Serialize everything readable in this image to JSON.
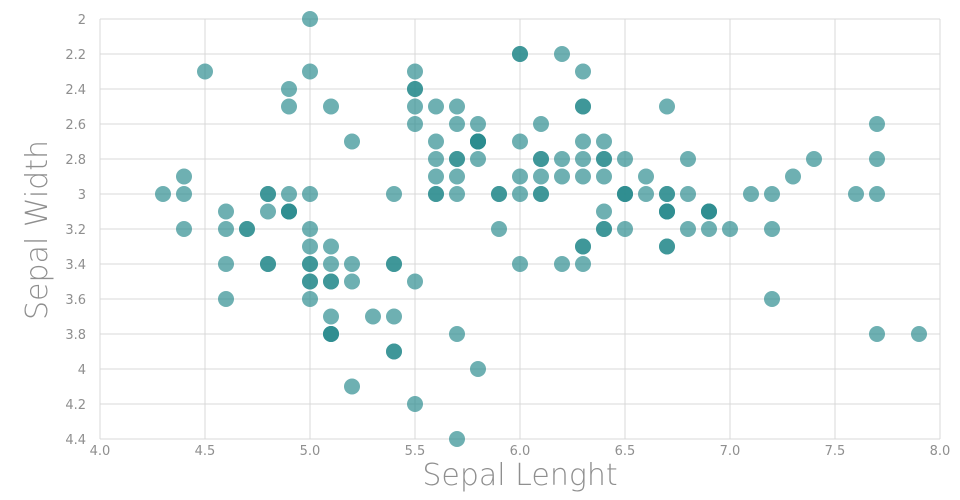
{
  "chart_data": {
    "type": "scatter",
    "title": "",
    "xlabel": "Sepal Lenght",
    "ylabel": "Sepal Width",
    "xlim": [
      4.0,
      8.0
    ],
    "ylim": [
      2.0,
      4.4
    ],
    "y_inverted": true,
    "grid": true,
    "legend": "none",
    "point_color": "#2a8a8e",
    "x_tick_labels": [
      "4.0",
      "4.5",
      "5.0",
      "5.5",
      "6.0",
      "6.5",
      "7.0",
      "7.5",
      "8.0"
    ],
    "y_tick_labels": [
      "2",
      "2.2",
      "2.4",
      "2.6",
      "2.8",
      "3",
      "3.2",
      "3.4",
      "3.6",
      "3.8",
      "4",
      "4.2",
      "4.4"
    ],
    "points": [
      {
        "x": 5.1,
        "y": 3.5
      },
      {
        "x": 4.9,
        "y": 3.0
      },
      {
        "x": 4.7,
        "y": 3.2
      },
      {
        "x": 4.6,
        "y": 3.1
      },
      {
        "x": 5.0,
        "y": 3.6
      },
      {
        "x": 5.4,
        "y": 3.9
      },
      {
        "x": 4.6,
        "y": 3.4
      },
      {
        "x": 5.0,
        "y": 3.4
      },
      {
        "x": 4.4,
        "y": 2.9
      },
      {
        "x": 4.9,
        "y": 3.1
      },
      {
        "x": 5.4,
        "y": 3.7
      },
      {
        "x": 4.8,
        "y": 3.4
      },
      {
        "x": 4.8,
        "y": 3.0
      },
      {
        "x": 4.3,
        "y": 3.0
      },
      {
        "x": 5.8,
        "y": 4.0
      },
      {
        "x": 5.7,
        "y": 4.4
      },
      {
        "x": 5.4,
        "y": 3.9
      },
      {
        "x": 5.1,
        "y": 3.5
      },
      {
        "x": 5.7,
        "y": 3.8
      },
      {
        "x": 5.1,
        "y": 3.8
      },
      {
        "x": 5.4,
        "y": 3.4
      },
      {
        "x": 5.1,
        "y": 3.7
      },
      {
        "x": 4.6,
        "y": 3.6
      },
      {
        "x": 5.1,
        "y": 3.3
      },
      {
        "x": 4.8,
        "y": 3.4
      },
      {
        "x": 5.0,
        "y": 3.0
      },
      {
        "x": 5.0,
        "y": 3.4
      },
      {
        "x": 5.2,
        "y": 3.5
      },
      {
        "x": 5.2,
        "y": 3.4
      },
      {
        "x": 4.7,
        "y": 3.2
      },
      {
        "x": 4.8,
        "y": 3.1
      },
      {
        "x": 5.4,
        "y": 3.4
      },
      {
        "x": 5.2,
        "y": 4.1
      },
      {
        "x": 5.5,
        "y": 4.2
      },
      {
        "x": 4.9,
        "y": 3.1
      },
      {
        "x": 5.0,
        "y": 3.2
      },
      {
        "x": 5.5,
        "y": 3.5
      },
      {
        "x": 4.9,
        "y": 3.1
      },
      {
        "x": 4.4,
        "y": 3.0
      },
      {
        "x": 5.1,
        "y": 3.4
      },
      {
        "x": 5.0,
        "y": 3.5
      },
      {
        "x": 4.5,
        "y": 2.3
      },
      {
        "x": 4.4,
        "y": 3.2
      },
      {
        "x": 5.0,
        "y": 3.5
      },
      {
        "x": 5.1,
        "y": 3.8
      },
      {
        "x": 4.8,
        "y": 3.0
      },
      {
        "x": 5.1,
        "y": 3.8
      },
      {
        "x": 4.6,
        "y": 3.2
      },
      {
        "x": 5.3,
        "y": 3.7
      },
      {
        "x": 5.0,
        "y": 3.3
      },
      {
        "x": 7.0,
        "y": 3.2
      },
      {
        "x": 6.4,
        "y": 3.2
      },
      {
        "x": 6.9,
        "y": 3.1
      },
      {
        "x": 5.5,
        "y": 2.3
      },
      {
        "x": 6.5,
        "y": 2.8
      },
      {
        "x": 5.7,
        "y": 2.8
      },
      {
        "x": 6.3,
        "y": 3.3
      },
      {
        "x": 4.9,
        "y": 2.4
      },
      {
        "x": 6.6,
        "y": 2.9
      },
      {
        "x": 5.2,
        "y": 2.7
      },
      {
        "x": 5.0,
        "y": 2.0
      },
      {
        "x": 5.9,
        "y": 3.0
      },
      {
        "x": 6.0,
        "y": 2.2
      },
      {
        "x": 6.1,
        "y": 2.9
      },
      {
        "x": 5.6,
        "y": 2.9
      },
      {
        "x": 6.7,
        "y": 3.1
      },
      {
        "x": 5.6,
        "y": 3.0
      },
      {
        "x": 5.8,
        "y": 2.7
      },
      {
        "x": 6.2,
        "y": 2.2
      },
      {
        "x": 5.6,
        "y": 2.5
      },
      {
        "x": 5.9,
        "y": 3.2
      },
      {
        "x": 6.1,
        "y": 2.8
      },
      {
        "x": 6.3,
        "y": 2.5
      },
      {
        "x": 6.1,
        "y": 2.8
      },
      {
        "x": 6.4,
        "y": 2.9
      },
      {
        "x": 6.6,
        "y": 3.0
      },
      {
        "x": 6.8,
        "y": 2.8
      },
      {
        "x": 6.7,
        "y": 3.0
      },
      {
        "x": 6.0,
        "y": 2.9
      },
      {
        "x": 5.7,
        "y": 2.6
      },
      {
        "x": 5.5,
        "y": 2.4
      },
      {
        "x": 5.5,
        "y": 2.4
      },
      {
        "x": 5.8,
        "y": 2.7
      },
      {
        "x": 6.0,
        "y": 2.7
      },
      {
        "x": 5.4,
        "y": 3.0
      },
      {
        "x": 6.0,
        "y": 3.4
      },
      {
        "x": 6.7,
        "y": 3.1
      },
      {
        "x": 6.3,
        "y": 2.3
      },
      {
        "x": 5.6,
        "y": 3.0
      },
      {
        "x": 5.5,
        "y": 2.5
      },
      {
        "x": 5.5,
        "y": 2.6
      },
      {
        "x": 6.1,
        "y": 3.0
      },
      {
        "x": 5.8,
        "y": 2.6
      },
      {
        "x": 5.0,
        "y": 2.3
      },
      {
        "x": 5.6,
        "y": 2.7
      },
      {
        "x": 5.7,
        "y": 3.0
      },
      {
        "x": 5.7,
        "y": 2.9
      },
      {
        "x": 6.2,
        "y": 2.9
      },
      {
        "x": 5.1,
        "y": 2.5
      },
      {
        "x": 5.7,
        "y": 2.8
      },
      {
        "x": 6.3,
        "y": 3.3
      },
      {
        "x": 5.8,
        "y": 2.7
      },
      {
        "x": 7.1,
        "y": 3.0
      },
      {
        "x": 6.3,
        "y": 2.9
      },
      {
        "x": 6.5,
        "y": 3.0
      },
      {
        "x": 7.6,
        "y": 3.0
      },
      {
        "x": 4.9,
        "y": 2.5
      },
      {
        "x": 7.3,
        "y": 2.9
      },
      {
        "x": 6.7,
        "y": 2.5
      },
      {
        "x": 7.2,
        "y": 3.6
      },
      {
        "x": 6.5,
        "y": 3.2
      },
      {
        "x": 6.4,
        "y": 2.7
      },
      {
        "x": 6.8,
        "y": 3.0
      },
      {
        "x": 5.7,
        "y": 2.5
      },
      {
        "x": 5.8,
        "y": 2.8
      },
      {
        "x": 6.4,
        "y": 3.2
      },
      {
        "x": 6.5,
        "y": 3.0
      },
      {
        "x": 7.7,
        "y": 3.8
      },
      {
        "x": 7.7,
        "y": 2.6
      },
      {
        "x": 6.0,
        "y": 2.2
      },
      {
        "x": 6.9,
        "y": 3.2
      },
      {
        "x": 5.6,
        "y": 2.8
      },
      {
        "x": 7.7,
        "y": 2.8
      },
      {
        "x": 6.3,
        "y": 2.7
      },
      {
        "x": 6.7,
        "y": 3.3
      },
      {
        "x": 7.2,
        "y": 3.2
      },
      {
        "x": 6.2,
        "y": 2.8
      },
      {
        "x": 6.1,
        "y": 3.0
      },
      {
        "x": 6.4,
        "y": 2.8
      },
      {
        "x": 7.2,
        "y": 3.0
      },
      {
        "x": 7.4,
        "y": 2.8
      },
      {
        "x": 7.9,
        "y": 3.8
      },
      {
        "x": 6.4,
        "y": 2.8
      },
      {
        "x": 6.3,
        "y": 2.8
      },
      {
        "x": 6.1,
        "y": 2.6
      },
      {
        "x": 7.7,
        "y": 3.0
      },
      {
        "x": 6.3,
        "y": 3.4
      },
      {
        "x": 6.4,
        "y": 3.1
      },
      {
        "x": 6.0,
        "y": 3.0
      },
      {
        "x": 6.9,
        "y": 3.1
      },
      {
        "x": 6.7,
        "y": 3.1
      },
      {
        "x": 6.9,
        "y": 3.1
      },
      {
        "x": 5.8,
        "y": 2.7
      },
      {
        "x": 6.8,
        "y": 3.2
      },
      {
        "x": 6.7,
        "y": 3.3
      },
      {
        "x": 6.7,
        "y": 3.0
      },
      {
        "x": 6.3,
        "y": 2.5
      },
      {
        "x": 6.5,
        "y": 3.0
      },
      {
        "x": 6.2,
        "y": 3.4
      },
      {
        "x": 5.9,
        "y": 3.0
      }
    ]
  }
}
